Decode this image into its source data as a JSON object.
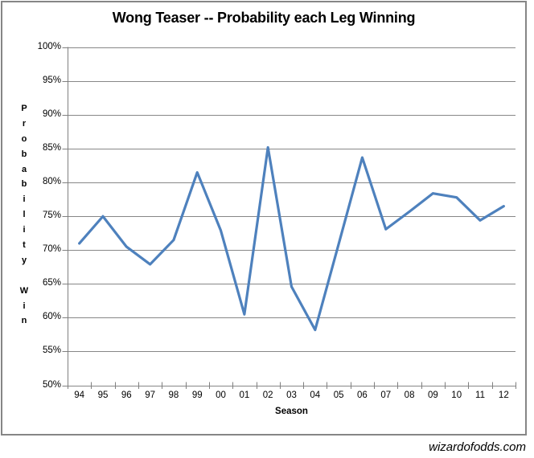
{
  "title": "Wong Teaser -- Probability each Leg Winning",
  "watermark": "wizardofodds.com",
  "chart_data": {
    "type": "line",
    "title": "Wong Teaser -- Probability each Leg Winning",
    "xlabel": "Season",
    "ylabel": "Probability Win",
    "categories": [
      "94",
      "95",
      "96",
      "97",
      "98",
      "99",
      "00",
      "01",
      "02",
      "03",
      "04",
      "05",
      "06",
      "07",
      "08",
      "09",
      "10",
      "11",
      "12"
    ],
    "series": [
      {
        "name": "Probability each leg winning",
        "values": [
          71.0,
          75.0,
          70.5,
          67.9,
          71.5,
          81.5,
          72.9,
          60.5,
          85.2,
          64.6,
          58.2,
          70.9,
          83.7,
          73.1,
          75.7,
          78.4,
          77.8,
          74.4,
          76.5
        ]
      }
    ],
    "ylim": [
      50,
      100
    ],
    "ytick_step": 5,
    "ytick_suffix": "%",
    "grid": true,
    "legend": false,
    "colors": {
      "line": "#4E81BD",
      "grid": "#878787",
      "axis": "#808080",
      "text": "#000000",
      "frame_border": "#868686",
      "background": "#ffffff"
    }
  }
}
